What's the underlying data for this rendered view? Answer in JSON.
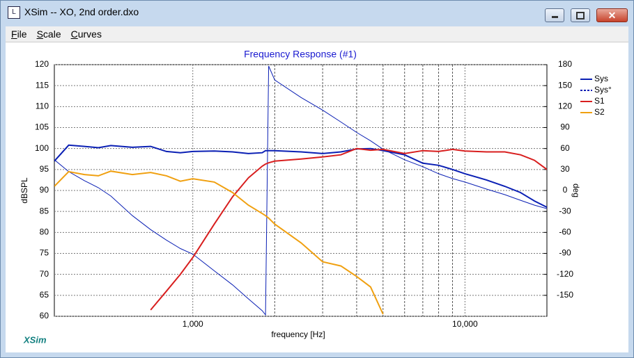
{
  "window": {
    "title": "XSim -- XO, 2nd order.dxo",
    "menu": [
      "File",
      "Scale",
      "Curves"
    ],
    "watermark": "XSim"
  },
  "chart_data": {
    "type": "line",
    "title": "Frequency Response (#1)",
    "x_label": "frequency [Hz]",
    "y_label": "dBSPL",
    "y2_label": "deg",
    "xscale": "log",
    "xlim": [
      310,
      20000
    ],
    "xticks": [
      {
        "value": 1000,
        "label": "1,000"
      },
      {
        "value": 10000,
        "label": "10,000"
      }
    ],
    "x_minor_gridlines": [
      2000,
      3000,
      4000,
      5000,
      6000,
      7000,
      8000,
      9000
    ],
    "ylim": [
      60,
      120
    ],
    "yticks": [
      60,
      65,
      70,
      75,
      80,
      85,
      90,
      95,
      100,
      105,
      110,
      115,
      120
    ],
    "y2lim": [
      -180,
      180
    ],
    "y2ticks": [
      -150,
      -120,
      -90,
      -60,
      -30,
      0,
      30,
      60,
      90,
      120,
      150,
      180
    ],
    "grid": true,
    "legend": "right",
    "x": [
      310,
      350,
      400,
      450,
      500,
      600,
      700,
      800,
      900,
      1000,
      1200,
      1400,
      1600,
      1800,
      1850,
      1900,
      2000,
      2500,
      3000,
      3500,
      4000,
      4500,
      5000,
      6000,
      7000,
      8000,
      9000,
      10000,
      12000,
      14000,
      16000,
      18000,
      20000
    ],
    "series": [
      {
        "name": "Sys",
        "color": "#0a1fb4",
        "values": [
          97,
          100.8,
          100.5,
          100.2,
          100.7,
          100.3,
          100.5,
          99.3,
          99,
          99.3,
          99.4,
          99.2,
          98.8,
          99,
          99.5,
          99.5,
          99.5,
          99.2,
          98.8,
          99.2,
          99.9,
          100,
          99.5,
          98.5,
          96.5,
          96,
          95,
          94,
          92.5,
          91,
          89.5,
          87.5,
          86
        ]
      },
      {
        "name": "Sys°",
        "color": "#0a1fb4",
        "axis": "y2",
        "values": [
          44,
          27,
          14,
          4,
          -8,
          -36,
          -56,
          -71,
          -83,
          -91,
          -115,
          -135,
          -155,
          -172,
          -178,
          178,
          158,
          133,
          115,
          98,
          83,
          71,
          59,
          44,
          34,
          24,
          17,
          12,
          2,
          -6,
          -14,
          -21,
          -26
        ]
      },
      {
        "name": "S1",
        "color": "#d81e1e",
        "values": [
          null,
          null,
          null,
          null,
          null,
          null,
          61.5,
          66,
          70,
          74,
          82,
          88.5,
          93,
          95.8,
          96.3,
          96.6,
          97,
          97.5,
          98,
          98.5,
          100,
          99.6,
          99.8,
          98.8,
          99.5,
          99.3,
          99.8,
          99.4,
          99.2,
          99.2,
          98.5,
          97.2,
          95
        ]
      },
      {
        "name": "S2",
        "color": "#f0a010",
        "values": [
          91,
          94.5,
          93.8,
          93.5,
          94.6,
          93.8,
          94.3,
          93.5,
          92.2,
          92.8,
          92,
          89.5,
          86.5,
          84.5,
          84,
          83.4,
          82,
          77.5,
          73,
          72,
          69.5,
          67,
          60.5,
          null,
          null,
          null,
          null,
          null,
          null,
          null,
          null,
          null,
          null
        ]
      }
    ]
  }
}
